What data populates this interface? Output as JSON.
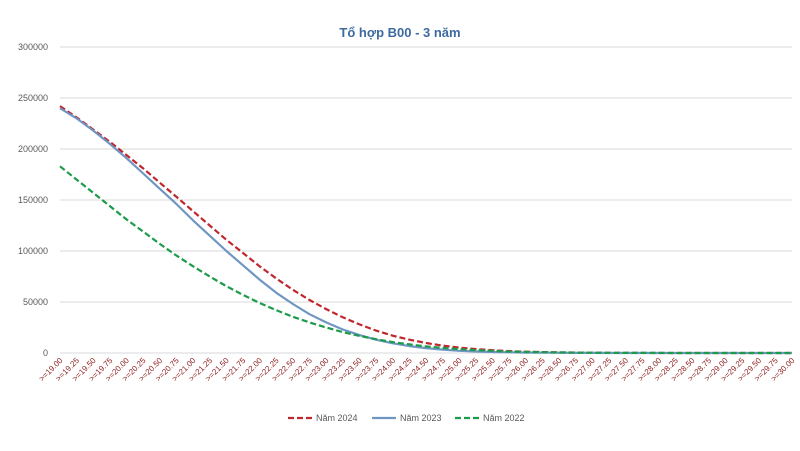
{
  "chart_data": {
    "type": "line",
    "title": "Tổ hợp B00 - 3 năm",
    "ylim": [
      0,
      300000
    ],
    "yticks": [
      "0",
      "50000",
      "100000",
      "150000",
      "200000",
      "250000",
      "300000"
    ],
    "x": [
      ">=19.00",
      ">=19.25",
      ">=19.50",
      ">=19.75",
      ">=20.00",
      ">=20.25",
      ">=20.50",
      ">=20.75",
      ">=21.00",
      ">=21.25",
      ">=21.50",
      ">=21.75",
      ">=22.00",
      ">=22.25",
      ">=22.50",
      ">=22.75",
      ">=23.00",
      ">=23.25",
      ">=23.50",
      ">=23.75",
      ">=24.00",
      ">=24.25",
      ">=24.50",
      ">=24.75",
      ">=25.00",
      ">=25.25",
      ">=25.50",
      ">=25.75",
      ">=26.00",
      ">=26.25",
      ">=26.50",
      ">=26.75",
      ">=27.00",
      ">=27.25",
      ">=27.50",
      ">=27.75",
      ">=28.00",
      ">=28.25",
      ">=28.50",
      ">=28.75",
      ">=29.00",
      ">=29.25",
      ">=29.50",
      ">=29.75",
      ">=30.00"
    ],
    "grid": true,
    "legend_position": "bottom",
    "series": [
      {
        "name": "Năm 2024",
        "color": "#c0272d",
        "style": "dashed",
        "values": [
          242000,
          231000,
          219000,
          207000,
          194000,
          181000,
          167000,
          153000,
          139000,
          125000,
          111000,
          98000,
          85000,
          73000,
          62000,
          52000,
          43000,
          35000,
          28000,
          22000,
          17000,
          13000,
          9800,
          7300,
          5300,
          3800,
          2700,
          1900,
          1300,
          900,
          600,
          400,
          260,
          170,
          110,
          70,
          45,
          30,
          20,
          12,
          8,
          5,
          3,
          2,
          1
        ]
      },
      {
        "name": "Năm 2023",
        "color": "#6f96c3",
        "style": "solid",
        "values": [
          240000,
          230000,
          218000,
          205000,
          191000,
          176000,
          161000,
          146000,
          130000,
          115000,
          100000,
          86000,
          72000,
          59000,
          48000,
          38000,
          30000,
          23000,
          17500,
          13000,
          9500,
          6800,
          4800,
          3300,
          2200,
          1500,
          1000,
          650,
          420,
          270,
          170,
          110,
          70,
          44,
          28,
          18,
          11,
          7,
          4,
          3,
          2,
          1,
          1,
          0,
          0
        ]
      },
      {
        "name": "Năm 2022",
        "color": "#1c9b4a",
        "style": "dashed",
        "values": [
          183000,
          170000,
          157000,
          144000,
          131000,
          119000,
          107000,
          95500,
          85000,
          75000,
          65500,
          57000,
          49000,
          42000,
          35500,
          30000,
          25000,
          20500,
          16800,
          13500,
          10700,
          8400,
          6500,
          5000,
          3800,
          2800,
          2100,
          1500,
          1100,
          780,
          550,
          380,
          260,
          180,
          120,
          80,
          55,
          36,
          24,
          16,
          10,
          7,
          4,
          3,
          2
        ]
      }
    ]
  }
}
